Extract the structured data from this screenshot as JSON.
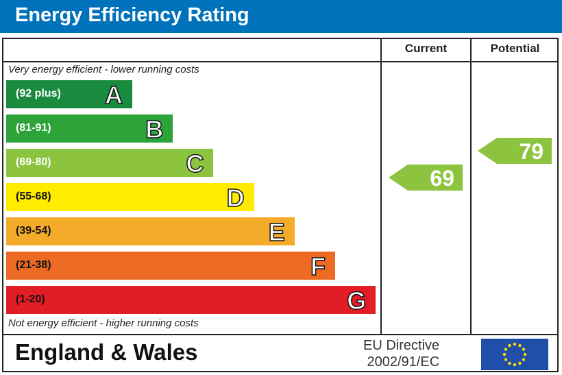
{
  "header": {
    "title": "Energy Efficiency Rating"
  },
  "columns": {
    "current": "Current",
    "potential": "Potential"
  },
  "notes": {
    "top": "Very energy efficient - lower running costs",
    "bottom": "Not energy efficient - higher running costs"
  },
  "footer": {
    "country": "England & Wales",
    "directive_line1": "EU Directive",
    "directive_line2": "2002/91/EC"
  },
  "chart_data": {
    "type": "bar",
    "bands": [
      {
        "letter": "A",
        "range": "(92 plus)",
        "color": "#1a8a3e"
      },
      {
        "letter": "B",
        "range": "(81-91)",
        "color": "#2ca43a"
      },
      {
        "letter": "C",
        "range": "(69-80)",
        "color": "#8cc43f"
      },
      {
        "letter": "D",
        "range": "(55-68)",
        "color": "#ffec00"
      },
      {
        "letter": "E",
        "range": "(39-54)",
        "color": "#f5ab2a"
      },
      {
        "letter": "F",
        "range": "(21-38)",
        "color": "#ec6a24"
      },
      {
        "letter": "G",
        "range": "(1-20)",
        "color": "#e21d25"
      }
    ],
    "current": {
      "value": 69,
      "band": "C",
      "color": "#8cc43f"
    },
    "potential": {
      "value": 79,
      "band": "C",
      "color": "#8cc43f"
    }
  }
}
